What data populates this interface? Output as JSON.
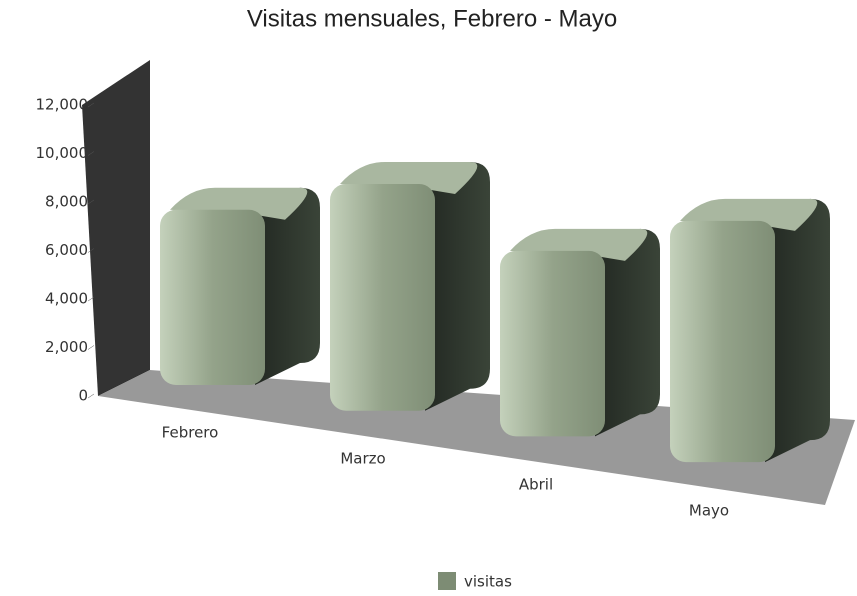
{
  "chart_data": {
    "type": "bar3d",
    "title": "Visitas mensuales, Febrero - Mayo",
    "categories": [
      "Febrero",
      "Marzo",
      "Abril",
      "Mayo"
    ],
    "series": [
      {
        "name": "visitas",
        "color": "#94a38a",
        "values": [
          8500,
          10000,
          7500,
          9000
        ]
      }
    ],
    "ylim": [
      0,
      12000
    ],
    "yticks": [
      0,
      {
        "value": 2000,
        "label": "2,000"
      },
      {
        "value": 4000,
        "label": "4,000"
      },
      {
        "value": 6000,
        "label": "6,000"
      },
      {
        "value": 8000,
        "label": "8,000"
      },
      {
        "value": 10000,
        "label": "10,000"
      },
      {
        "value": 12000,
        "label": "12,000"
      }
    ]
  }
}
